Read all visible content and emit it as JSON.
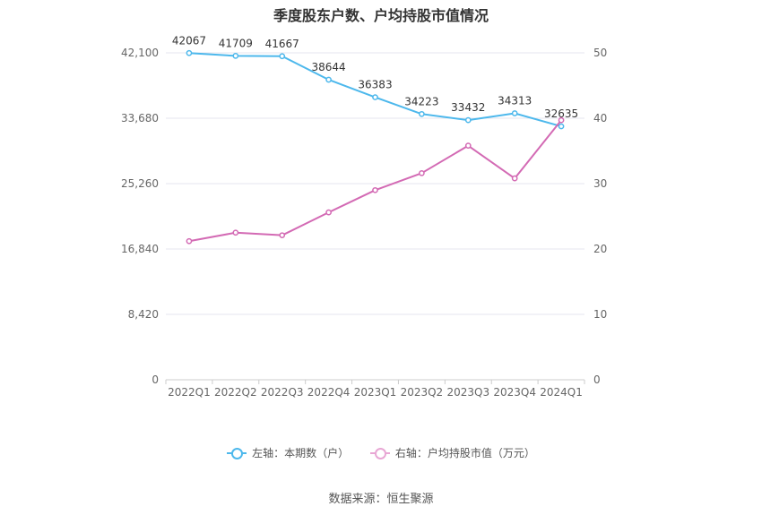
{
  "chart_data": {
    "type": "line",
    "title": "季度股东户数、户均持股市值情况",
    "categories": [
      "2022Q1",
      "2022Q2",
      "2022Q3",
      "2022Q4",
      "2023Q1",
      "2023Q2",
      "2023Q3",
      "2023Q4",
      "2024Q1"
    ],
    "series": [
      {
        "name": "左轴：本期数（户）",
        "axis": "left",
        "color": "#4db8ec",
        "values": [
          42067,
          41709,
          41667,
          38644,
          36383,
          34223,
          33432,
          34313,
          32635
        ],
        "labels": [
          "42067",
          "41709",
          "41667",
          "38644",
          "36383",
          "34223",
          "33432",
          "34313",
          "32635"
        ]
      },
      {
        "name": "右轴：户均持股市值（万元）",
        "axis": "right",
        "color": "#d36ab4",
        "values": [
          21.2,
          22.5,
          22.1,
          25.6,
          29.0,
          31.6,
          35.8,
          30.8,
          39.7
        ]
      }
    ],
    "y_left": {
      "min": 0,
      "max": 42100,
      "ticks": [
        0,
        8420,
        16840,
        25260,
        33680,
        42100
      ],
      "tick_labels": [
        "0",
        "8,420",
        "16,840",
        "25,260",
        "33,680",
        "42,100"
      ]
    },
    "y_right": {
      "min": 0,
      "max": 50,
      "ticks": [
        0,
        10,
        20,
        30,
        40,
        50
      ],
      "tick_labels": [
        "0",
        "10",
        "20",
        "30",
        "40",
        "50"
      ]
    },
    "grid": true,
    "legend_position": "bottom",
    "source": "数据来源：恒生聚源"
  }
}
